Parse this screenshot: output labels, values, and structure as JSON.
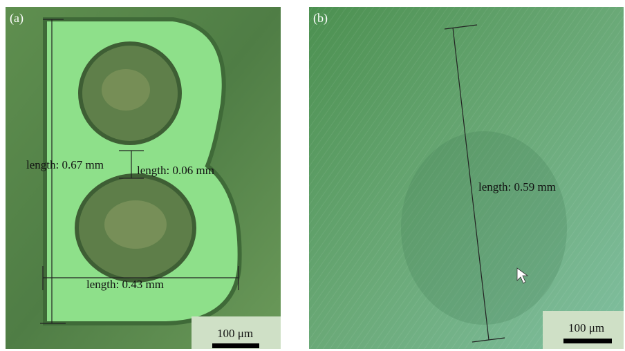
{
  "panels": [
    {
      "label": "(a)",
      "measurements": [
        "length: 0.67 mm",
        "length: 0.06 mm",
        "length: 0.43 mm"
      ],
      "scale_bar": "100 μm"
    },
    {
      "label": "(b)",
      "measurements": [
        "length: 0.59 mm"
      ],
      "scale_bar": "100 μm"
    }
  ]
}
